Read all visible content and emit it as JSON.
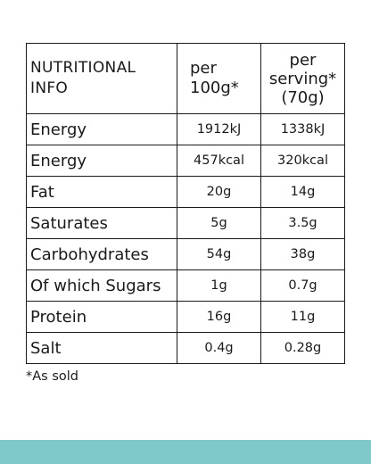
{
  "colors": {
    "teal": "#7fc9c9",
    "text": "#1a1a1a",
    "background": "#ffffff"
  },
  "table": {
    "header": {
      "col1_line1": "NUTRITIONAL",
      "col1_line2": "INFO",
      "col2_line1": "per",
      "col2_line2": "100g*",
      "col3_line1": "per",
      "col3_line2": "serving*",
      "col3_line3": "(70g)"
    },
    "rows": [
      {
        "name": "Energy",
        "per100": "1912kJ",
        "perServing": "1338kJ"
      },
      {
        "name": "Energy",
        "per100": "457kcal",
        "perServing": "320kcal"
      },
      {
        "name": "Fat",
        "per100": "20g",
        "perServing": "14g"
      },
      {
        "name": "Saturates",
        "per100": "5g",
        "perServing": "3.5g"
      },
      {
        "name": "Carbohydrates",
        "per100": "54g",
        "perServing": "38g"
      },
      {
        "name": "Of which Sugars",
        "per100": "1g",
        "perServing": "0.7g"
      },
      {
        "name": "Protein",
        "per100": "16g",
        "perServing": "11g"
      },
      {
        "name": "Salt",
        "per100": "0.4g",
        "perServing": "0.28g"
      }
    ]
  },
  "footnote": "*As sold"
}
